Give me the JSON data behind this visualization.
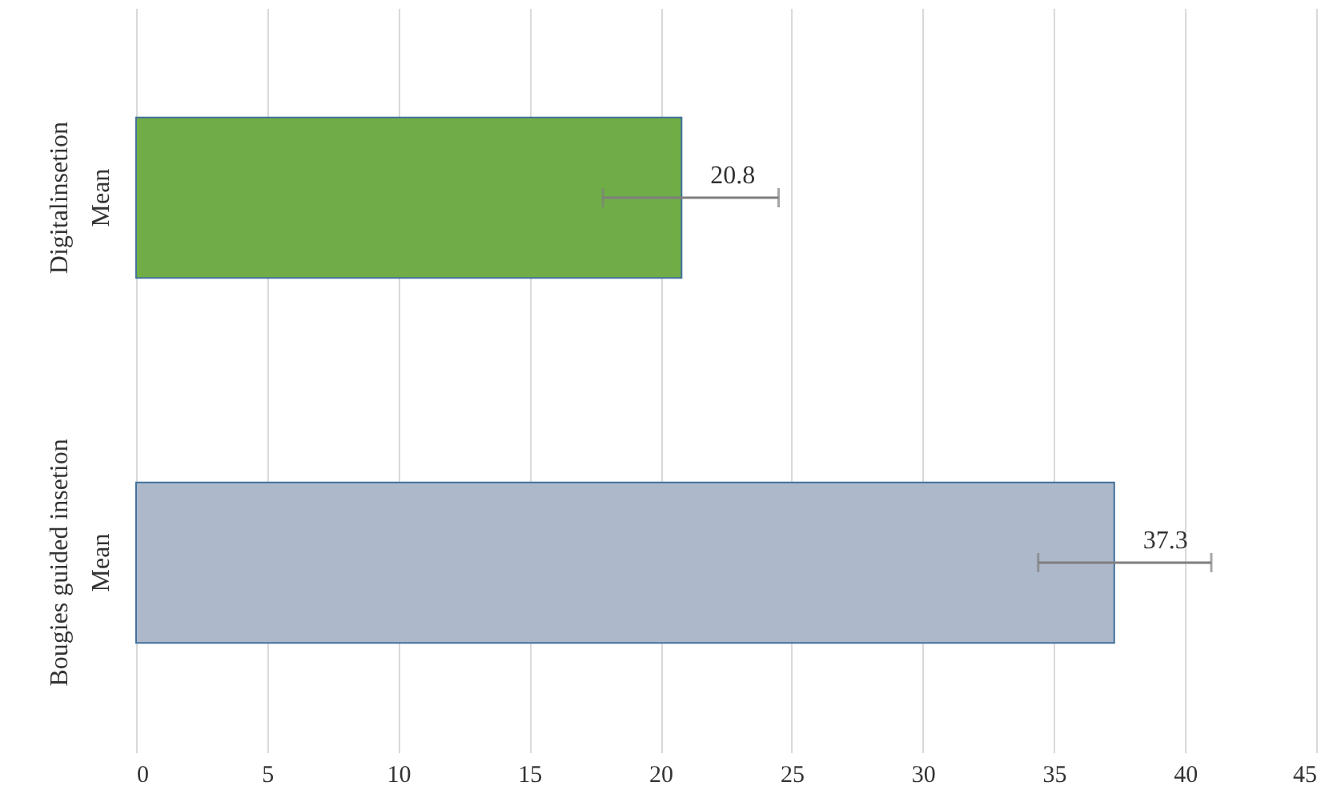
{
  "chart_data": {
    "type": "bar",
    "orientation": "horizontal",
    "categories": [
      "Mean",
      "Mean"
    ],
    "annotations": [
      "Digitalinsetion",
      "Bougies guided insetion"
    ],
    "values": [
      20.8,
      37.3
    ],
    "colors": [
      "#70ad47",
      "#adb9ca"
    ],
    "errors": [
      [
        17.8,
        24.5
      ],
      [
        34.4,
        41.0
      ]
    ],
    "data_labels": true,
    "xlim": [
      0,
      45
    ],
    "xticks": [
      0,
      5,
      10,
      15,
      20,
      25,
      30,
      35,
      40,
      45
    ],
    "grid": "x"
  }
}
